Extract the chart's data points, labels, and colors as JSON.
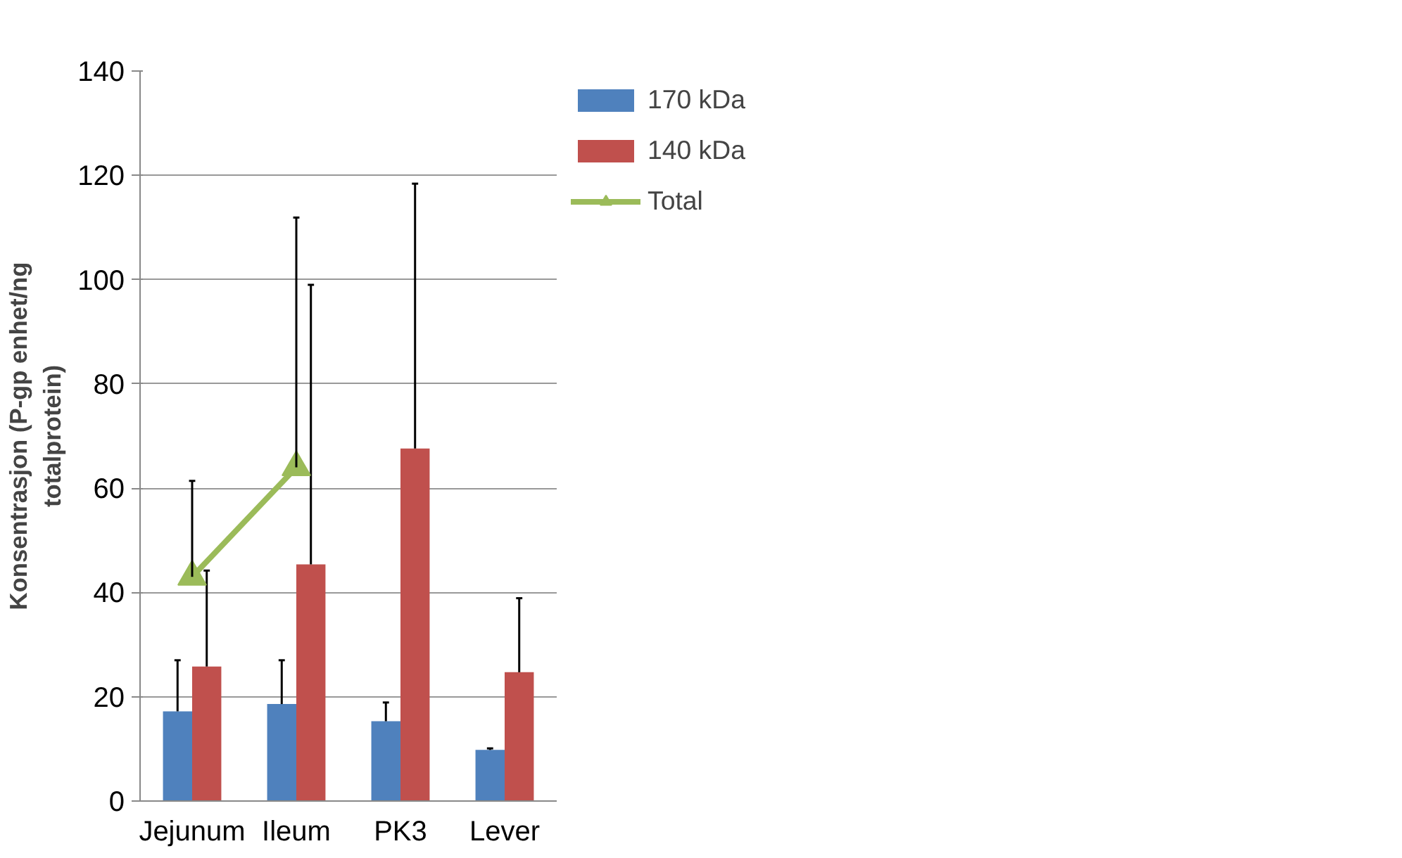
{
  "chart_data": {
    "type": "bar",
    "ylabel": "Konsentrasjon (P-gp enhet/ng totalprotein)",
    "categories": [
      "Jejunum",
      "Ileum",
      "PK3",
      "Lever"
    ],
    "series": [
      {
        "name": "170 kDa",
        "color": "#4f81bd",
        "values": [
          17.2,
          18.6,
          15.3,
          9.8
        ],
        "errors": [
          [
            17.2,
            27.0
          ],
          [
            18.6,
            27.0
          ],
          [
            15.3,
            18.9
          ],
          [
            9.8,
            10.1
          ]
        ]
      },
      {
        "name": "140 kDa",
        "color": "#c0504d",
        "values": [
          25.8,
          45.4,
          67.6,
          24.7
        ],
        "errors": [
          [
            25.8,
            44.2
          ],
          [
            45.4,
            99.0
          ],
          [
            67.6,
            118.4
          ],
          [
            24.7,
            38.9
          ]
        ]
      },
      {
        "name": "Total",
        "type": "line",
        "color": "#9bbb59",
        "marker": "triangle",
        "values": [
          43,
          64,
          null,
          null
        ],
        "errors": [
          [
            43,
            61.4
          ],
          [
            64,
            111.9
          ],
          null,
          null
        ]
      }
    ],
    "ylim": [
      0,
      140
    ],
    "yticks": [
      0,
      20,
      40,
      60,
      80,
      100,
      120,
      140
    ],
    "grid": "y",
    "legend": "top right"
  }
}
